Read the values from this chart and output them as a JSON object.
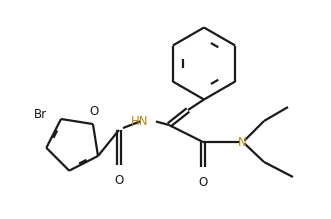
{
  "bg_color": "#ffffff",
  "line_color": "#1a1a1a",
  "n_color": "#b8860b",
  "lw": 1.6,
  "figsize": [
    3.31,
    2.19
  ],
  "dpi": 100,
  "xlim": [
    0.0,
    3.31
  ],
  "ylim": [
    0.0,
    2.19
  ]
}
